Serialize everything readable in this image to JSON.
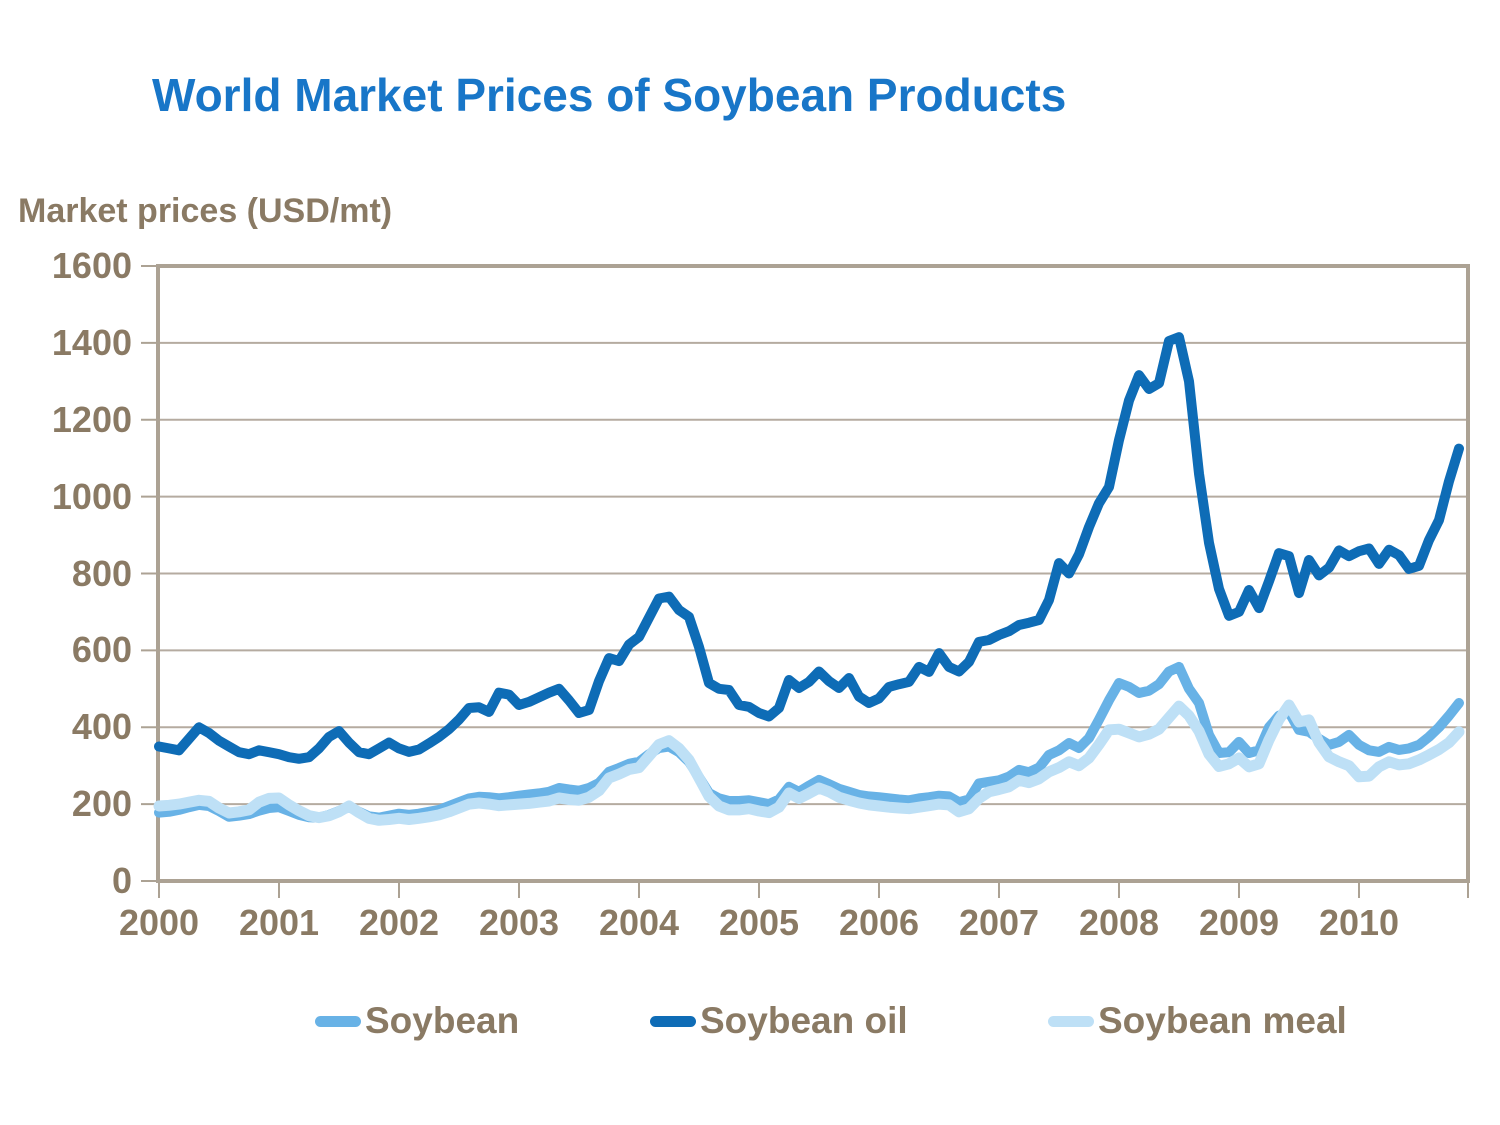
{
  "title": "World Market Prices of Soybean Products",
  "y_axis_title": "Market prices (USD/mt)",
  "colors": {
    "title_text": "#1876C8",
    "axis_text": "#8A7A64",
    "gridline": "#B5ABA0",
    "frame": "#ACA294",
    "background": "#FFFFFF"
  },
  "chart_data": {
    "type": "line",
    "title": "World Market Prices of Soybean Products",
    "ylabel": "Market prices (USD/mt)",
    "x_unit": "month",
    "x_start": "2000-01",
    "x_end": "2010-11",
    "x_tick_labels": [
      "2000",
      "2001",
      "2002",
      "2003",
      "2004",
      "2005",
      "2006",
      "2007",
      "2008",
      "2009",
      "2010"
    ],
    "y_ticks": [
      0,
      200,
      400,
      600,
      800,
      1000,
      1200,
      1400,
      1600
    ],
    "ylim": [
      0,
      1600
    ],
    "grid": "horizontal",
    "legend_position": "bottom",
    "series": [
      {
        "name": "Soybean",
        "color": "#68B2E6",
        "values": [
          178,
          180,
          185,
          192,
          198,
          195,
          182,
          167,
          170,
          174,
          183,
          190,
          192,
          182,
          172,
          166,
          165,
          172,
          182,
          192,
          180,
          168,
          165,
          170,
          175,
          172,
          175,
          180,
          185,
          195,
          205,
          215,
          219,
          218,
          215,
          218,
          222,
          225,
          228,
          232,
          242,
          238,
          235,
          242,
          255,
          284,
          294,
          305,
          310,
          330,
          346,
          350,
          335,
          310,
          270,
          229,
          215,
          208,
          208,
          210,
          205,
          200,
          212,
          245,
          232,
          248,
          263,
          252,
          240,
          232,
          224,
          220,
          218,
          215,
          212,
          210,
          215,
          218,
          222,
          220,
          205,
          212,
          254,
          258,
          262,
          272,
          289,
          283,
          295,
          328,
          340,
          359,
          346,
          372,
          420,
          470,
          515,
          505,
          489,
          495,
          512,
          545,
          557,
          500,
          463,
          380,
          333,
          335,
          362,
          333,
          340,
          400,
          430,
          440,
          393,
          388,
          370,
          354,
          362,
          380,
          354,
          340,
          336,
          349,
          341,
          345,
          354,
          375,
          400,
          430,
          463
        ]
      },
      {
        "name": "Soybean oil",
        "color": "#0E6CB6",
        "values": [
          350,
          345,
          340,
          370,
          400,
          385,
          365,
          350,
          335,
          330,
          340,
          335,
          330,
          322,
          318,
          322,
          345,
          375,
          390,
          360,
          335,
          330,
          345,
          360,
          345,
          336,
          342,
          358,
          375,
          395,
          420,
          450,
          452,
          440,
          490,
          485,
          458,
          466,
          478,
          490,
          500,
          470,
          437,
          445,
          520,
          580,
          572,
          615,
          635,
          685,
          735,
          740,
          705,
          687,
          609,
          515,
          500,
          497,
          458,
          453,
          437,
          428,
          450,
          523,
          502,
          518,
          545,
          520,
          502,
          528,
          480,
          463,
          475,
          505,
          512,
          518,
          557,
          544,
          593,
          557,
          545,
          570,
          622,
          627,
          640,
          650,
          666,
          672,
          679,
          731,
          827,
          800,
          850,
          921,
          983,
          1025,
          1147,
          1250,
          1316,
          1280,
          1295,
          1405,
          1415,
          1300,
          1060,
          880,
          760,
          690,
          700,
          757,
          710,
          780,
          853,
          845,
          749,
          835,
          795,
          815,
          860,
          845,
          858,
          865,
          825,
          862,
          848,
          812,
          820,
          887,
          939,
          1040,
          1125
        ]
      },
      {
        "name": "Soybean meal",
        "color": "#BEE0F6",
        "values": [
          195,
          197,
          200,
          205,
          210,
          207,
          190,
          177,
          180,
          185,
          205,
          215,
          216,
          198,
          183,
          170,
          165,
          170,
          180,
          195,
          178,
          163,
          158,
          160,
          163,
          160,
          163,
          167,
          172,
          180,
          190,
          200,
          203,
          200,
          196,
          198,
          200,
          202,
          205,
          208,
          216,
          212,
          210,
          218,
          235,
          268,
          278,
          290,
          295,
          325,
          355,
          365,
          345,
          315,
          268,
          220,
          195,
          185,
          185,
          188,
          182,
          178,
          192,
          229,
          215,
          228,
          242,
          232,
          218,
          210,
          203,
          198,
          195,
          192,
          190,
          188,
          192,
          196,
          200,
          198,
          180,
          188,
          215,
          232,
          238,
          245,
          262,
          256,
          266,
          284,
          295,
          310,
          300,
          320,
          355,
          393,
          395,
          385,
          375,
          382,
          395,
          425,
          455,
          430,
          390,
          330,
          298,
          305,
          320,
          297,
          305,
          367,
          420,
          458,
          414,
          419,
          360,
          323,
          310,
          300,
          271,
          273,
          297,
          310,
          302,
          305,
          315,
          328,
          342,
          360,
          388
        ]
      }
    ]
  }
}
